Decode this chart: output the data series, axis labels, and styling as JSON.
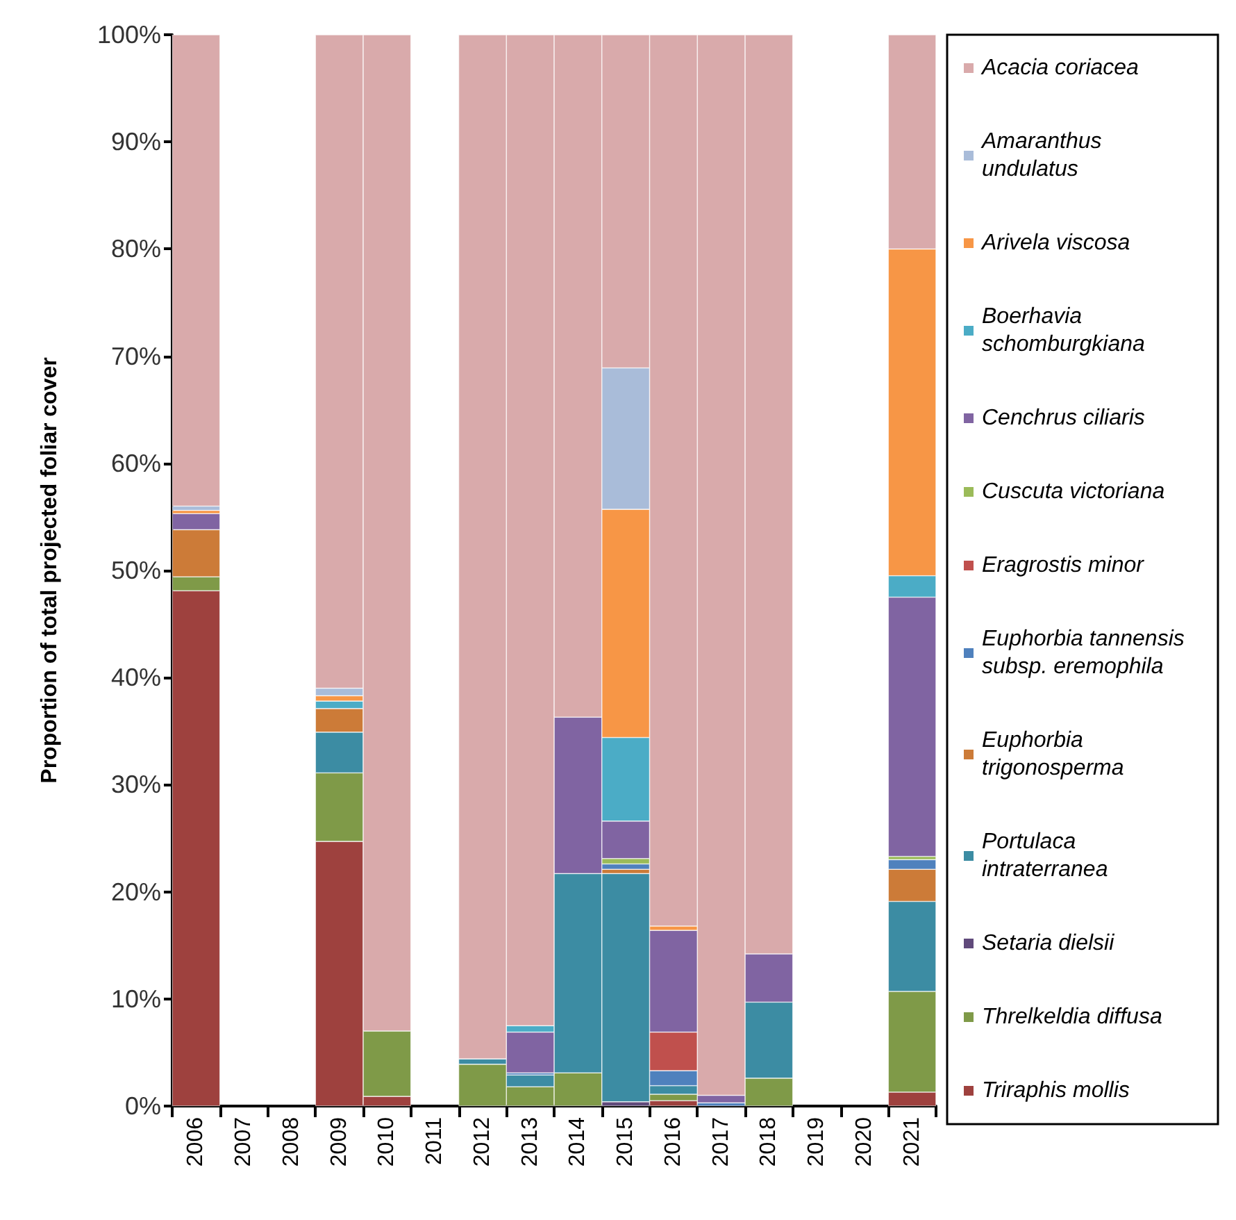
{
  "chart_data": {
    "type": "bar",
    "stacked": true,
    "ylabel": "Proportion of total projected foliar cover",
    "categories": [
      "2006",
      "2007",
      "2008",
      "2009",
      "2010",
      "2011",
      "2012",
      "2013",
      "2014",
      "2015",
      "2016",
      "2017",
      "2018",
      "2019",
      "2020",
      "2021"
    ],
    "ylim": [
      0,
      100
    ],
    "yticks": [
      {
        "value": 0,
        "label": "0%"
      },
      {
        "value": 10,
        "label": "10%"
      },
      {
        "value": 20,
        "label": "20%"
      },
      {
        "value": 30,
        "label": "30%"
      },
      {
        "value": 40,
        "label": "40%"
      },
      {
        "value": 50,
        "label": "50%"
      },
      {
        "value": 60,
        "label": "60%"
      },
      {
        "value": 70,
        "label": "70%"
      },
      {
        "value": 80,
        "label": "80%"
      },
      {
        "value": 90,
        "label": "90%"
      },
      {
        "value": 100,
        "label": "100%"
      }
    ],
    "grid": false,
    "legend": "right",
    "series": [
      {
        "name": "Triraphis mollis",
        "color": "#9e413e",
        "values": [
          48.1,
          null,
          null,
          24.7,
          0.9,
          null,
          null,
          null,
          null,
          null,
          0.5,
          null,
          null,
          null,
          null,
          1.3
        ]
      },
      {
        "name": "Threlkeldia diffusa",
        "color": "#7f9a48",
        "values": [
          1.3,
          null,
          null,
          6.4,
          6.1,
          null,
          3.9,
          1.8,
          3.1,
          null,
          0.6,
          null,
          2.6,
          null,
          null,
          9.4
        ]
      },
      {
        "name": "Setaria dielsii",
        "color": "#604a7b",
        "values": [
          null,
          null,
          null,
          null,
          null,
          null,
          null,
          null,
          null,
          0.4,
          null,
          null,
          null,
          null,
          null,
          null
        ]
      },
      {
        "name": "Portulaca intraterranea",
        "color": "#3c8ca3",
        "values": [
          null,
          null,
          null,
          3.8,
          null,
          null,
          0.5,
          1.1,
          18.6,
          21.3,
          0.8,
          null,
          7.1,
          null,
          null,
          8.4
        ]
      },
      {
        "name": "Euphorbia trigonosperma",
        "color": "#cc7b38",
        "values": [
          4.4,
          null,
          null,
          2.2,
          null,
          null,
          null,
          null,
          null,
          0.4,
          null,
          null,
          null,
          null,
          null,
          3.0
        ]
      },
      {
        "name": "Euphorbia tannensis subsp. eremophila",
        "color": "#4f81bd",
        "values": [
          null,
          null,
          null,
          null,
          null,
          null,
          null,
          0.2,
          null,
          0.5,
          1.4,
          0.3,
          null,
          null,
          null,
          0.9
        ]
      },
      {
        "name": "Eragrostis minor",
        "color": "#c0504d",
        "values": [
          null,
          null,
          null,
          null,
          null,
          null,
          null,
          null,
          null,
          null,
          3.6,
          null,
          null,
          null,
          null,
          null
        ]
      },
      {
        "name": "Cuscuta victoriana",
        "color": "#9bbb59",
        "values": [
          null,
          null,
          null,
          null,
          null,
          null,
          null,
          null,
          null,
          0.5,
          null,
          null,
          null,
          null,
          null,
          0.3
        ]
      },
      {
        "name": "Cenchrus ciliaris",
        "color": "#8064a2",
        "values": [
          1.5,
          null,
          null,
          null,
          null,
          null,
          null,
          3.8,
          14.6,
          3.5,
          9.5,
          0.7,
          4.5,
          null,
          null,
          24.2
        ]
      },
      {
        "name": "Boerhavia schomburgkiana",
        "color": "#4bacc6",
        "values": [
          null,
          null,
          null,
          0.7,
          null,
          null,
          null,
          0.6,
          null,
          7.8,
          null,
          null,
          null,
          null,
          null,
          2.0
        ]
      },
      {
        "name": "Arivela viscosa",
        "color": "#f79646",
        "values": [
          0.3,
          null,
          null,
          0.5,
          null,
          null,
          null,
          null,
          null,
          21.3,
          0.4,
          null,
          null,
          null,
          null,
          30.5
        ]
      },
      {
        "name": "Amaranthus undulatus",
        "color": "#a9bcd9",
        "values": [
          0.4,
          null,
          null,
          0.7,
          null,
          null,
          null,
          null,
          null,
          13.2,
          null,
          null,
          null,
          null,
          null,
          null
        ]
      },
      {
        "name": "Acacia coriacea",
        "color": "#d9aaab",
        "values": [
          44.0,
          null,
          null,
          61.0,
          93.0,
          null,
          95.6,
          92.5,
          63.7,
          31.1,
          83.2,
          99.0,
          85.8,
          null,
          null,
          20.0
        ]
      }
    ]
  }
}
